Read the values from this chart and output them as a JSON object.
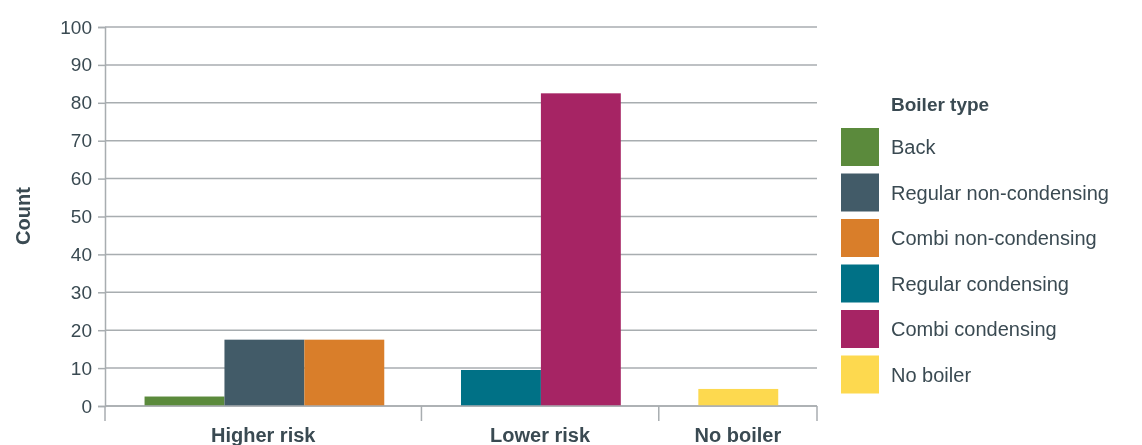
{
  "chart_data": {
    "type": "bar",
    "ylabel": "Count",
    "legend_title": "Boiler type",
    "categories": [
      "Higher risk",
      "Lower risk",
      "No boiler"
    ],
    "series": [
      {
        "name": "Back",
        "color": "#5b8a3c",
        "values": [
          2.5,
          null,
          null
        ]
      },
      {
        "name": "Regular non-condensing",
        "color": "#425b68",
        "values": [
          17.5,
          null,
          null
        ]
      },
      {
        "name": "Combi non-condensing",
        "color": "#d97e2a",
        "values": [
          17.5,
          null,
          null
        ]
      },
      {
        "name": "Regular condensing",
        "color": "#007186",
        "values": [
          null,
          9.5,
          null
        ]
      },
      {
        "name": "Combi condensing",
        "color": "#a62464",
        "values": [
          null,
          82.5,
          null
        ]
      },
      {
        "name": "No boiler",
        "color": "#fdd94f",
        "values": [
          null,
          null,
          4.5
        ]
      }
    ],
    "ylim": [
      0,
      100
    ],
    "yticks": [
      0,
      10,
      20,
      30,
      40,
      50,
      60,
      70,
      80,
      90,
      100
    ],
    "grid": "y",
    "legend": "right"
  }
}
